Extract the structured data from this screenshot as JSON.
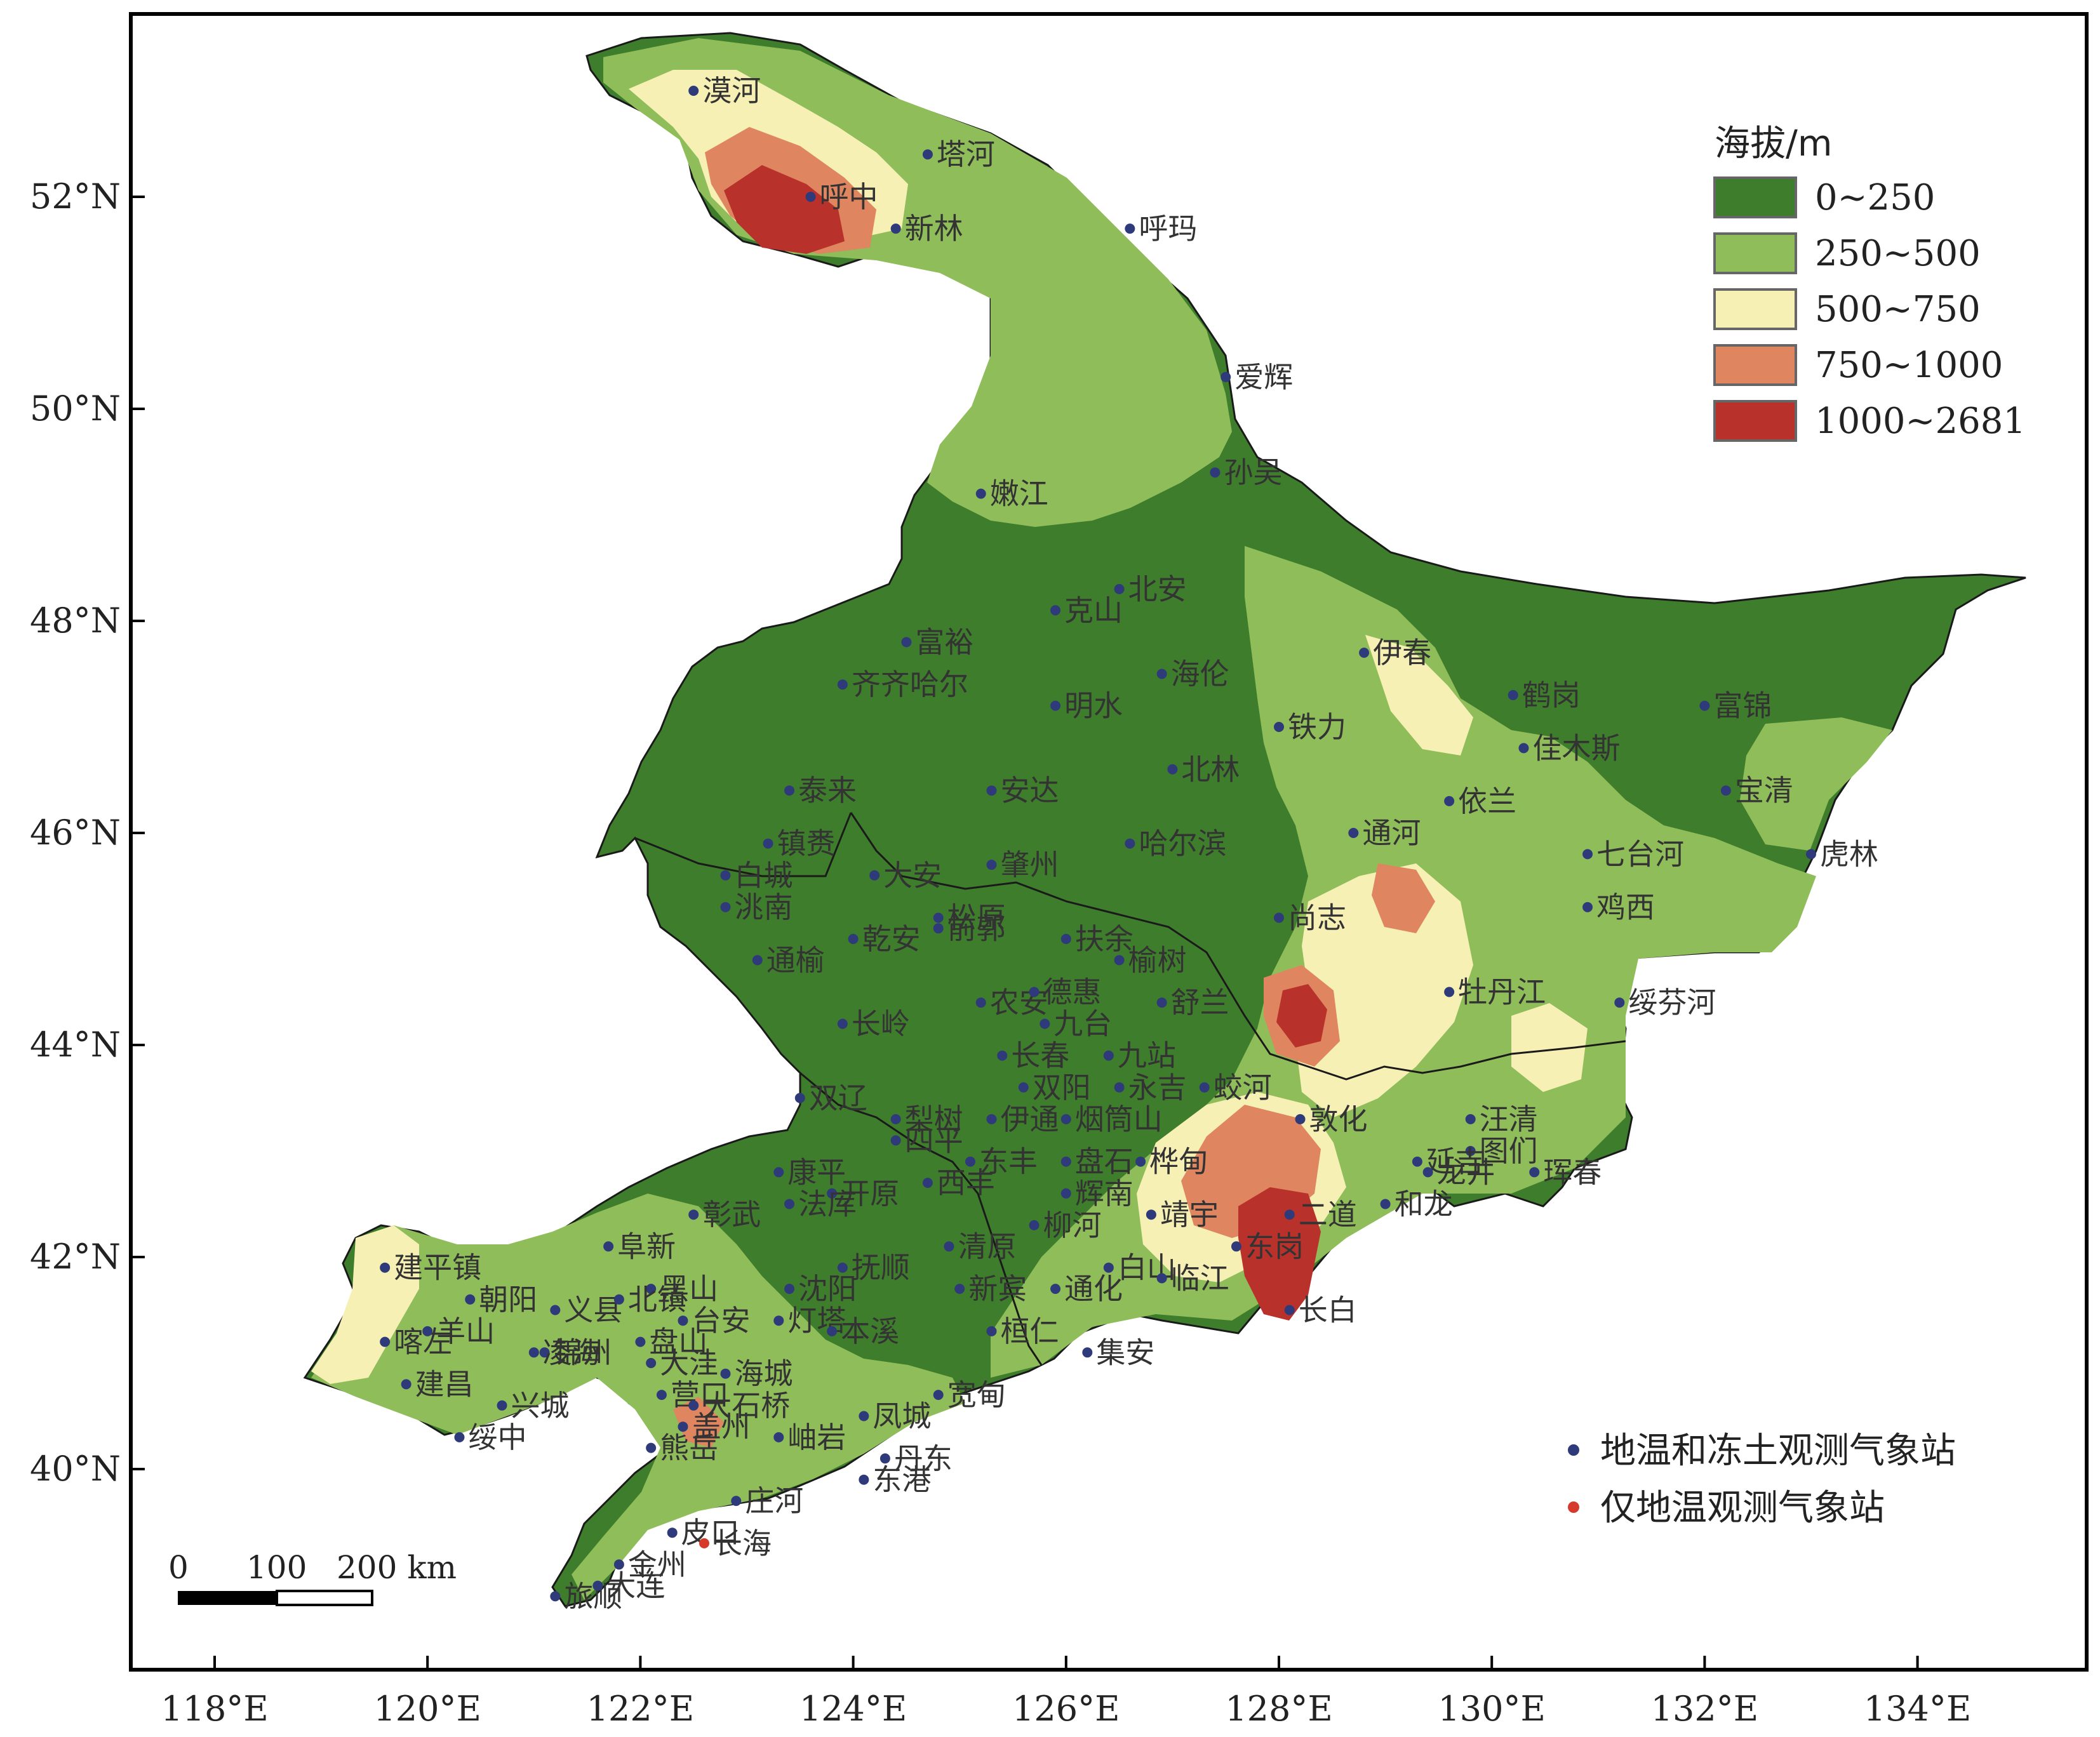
{
  "axes": {
    "x_ticks": [
      "118°E",
      "120°E",
      "122°E",
      "124°E",
      "126°E",
      "128°E",
      "130°E",
      "132°E",
      "134°E"
    ],
    "y_ticks": [
      "52°N",
      "50°N",
      "48°N",
      "46°N",
      "44°N",
      "42°N",
      "40°N"
    ]
  },
  "legend": {
    "title": "海拔/m",
    "classes": [
      {
        "label": "0~250",
        "color": "#3e7d2b"
      },
      {
        "label": "250~500",
        "color": "#8fbd5a"
      },
      {
        "label": "500~750",
        "color": "#f6f0b4"
      },
      {
        "label": "750~1000",
        "color": "#df8560"
      },
      {
        "label": "1000~2681",
        "color": "#b8312b"
      }
    ]
  },
  "station_legend": [
    {
      "label": "地温和冻土观测气象站",
      "color": "#2e3a7a"
    },
    {
      "label": "仅地温观测气象站",
      "color": "#d63a2a"
    }
  ],
  "scale_bar": {
    "ticks": [
      "0",
      "100",
      "200 km"
    ]
  },
  "stations": [
    {
      "name": "漠河",
      "lon": 122.5,
      "lat": 53.0,
      "type": "both"
    },
    {
      "name": "塔河",
      "lon": 124.7,
      "lat": 52.4,
      "type": "both"
    },
    {
      "name": "呼中",
      "lon": 123.6,
      "lat": 52.0,
      "type": "both"
    },
    {
      "name": "新林",
      "lon": 124.4,
      "lat": 51.7,
      "type": "both"
    },
    {
      "name": "呼玛",
      "lon": 126.6,
      "lat": 51.7,
      "type": "both"
    },
    {
      "name": "爱辉",
      "lon": 127.5,
      "lat": 50.3,
      "type": "both"
    },
    {
      "name": "孙吴",
      "lon": 127.4,
      "lat": 49.4,
      "type": "both"
    },
    {
      "name": "嫩江",
      "lon": 125.2,
      "lat": 49.2,
      "type": "both"
    },
    {
      "name": "北安",
      "lon": 126.5,
      "lat": 48.3,
      "type": "both"
    },
    {
      "name": "克山",
      "lon": 125.9,
      "lat": 48.1,
      "type": "both"
    },
    {
      "name": "富裕",
      "lon": 124.5,
      "lat": 47.8,
      "type": "both"
    },
    {
      "name": "伊春",
      "lon": 128.8,
      "lat": 47.7,
      "type": "both"
    },
    {
      "name": "海伦",
      "lon": 126.9,
      "lat": 47.5,
      "type": "both"
    },
    {
      "name": "齐齐哈尔",
      "lon": 123.9,
      "lat": 47.4,
      "type": "both"
    },
    {
      "name": "鹤岗",
      "lon": 130.2,
      "lat": 47.3,
      "type": "both"
    },
    {
      "name": "富锦",
      "lon": 132.0,
      "lat": 47.2,
      "type": "both"
    },
    {
      "name": "明水",
      "lon": 125.9,
      "lat": 47.2,
      "type": "both"
    },
    {
      "name": "铁力",
      "lon": 128.0,
      "lat": 47.0,
      "type": "both"
    },
    {
      "name": "佳木斯",
      "lon": 130.3,
      "lat": 46.8,
      "type": "both"
    },
    {
      "name": "北林",
      "lon": 127.0,
      "lat": 46.6,
      "type": "both"
    },
    {
      "name": "泰来",
      "lon": 123.4,
      "lat": 46.4,
      "type": "both"
    },
    {
      "name": "安达",
      "lon": 125.3,
      "lat": 46.4,
      "type": "both"
    },
    {
      "name": "宝清",
      "lon": 132.2,
      "lat": 46.4,
      "type": "both"
    },
    {
      "name": "依兰",
      "lon": 129.6,
      "lat": 46.3,
      "type": "both"
    },
    {
      "name": "通河",
      "lon": 128.7,
      "lat": 46.0,
      "type": "both"
    },
    {
      "name": "哈尔滨",
      "lon": 126.6,
      "lat": 45.9,
      "type": "both"
    },
    {
      "name": "镇赉",
      "lon": 123.2,
      "lat": 45.9,
      "type": "both"
    },
    {
      "name": "七台河",
      "lon": 130.9,
      "lat": 45.8,
      "type": "both"
    },
    {
      "name": "虎林",
      "lon": 133.0,
      "lat": 45.8,
      "type": "both"
    },
    {
      "name": "白城",
      "lon": 122.8,
      "lat": 45.6,
      "type": "both"
    },
    {
      "name": "大安",
      "lon": 124.2,
      "lat": 45.6,
      "type": "both"
    },
    {
      "name": "肇州",
      "lon": 125.3,
      "lat": 45.7,
      "type": "both"
    },
    {
      "name": "松原",
      "lon": 124.8,
      "lat": 45.2,
      "type": "both"
    },
    {
      "name": "洮南",
      "lon": 122.8,
      "lat": 45.3,
      "type": "both"
    },
    {
      "name": "鸡西",
      "lon": 130.9,
      "lat": 45.3,
      "type": "both"
    },
    {
      "name": "尚志",
      "lon": 128.0,
      "lat": 45.2,
      "type": "both"
    },
    {
      "name": "前郭",
      "lon": 124.8,
      "lat": 45.1,
      "type": "both"
    },
    {
      "name": "扶余",
      "lon": 126.0,
      "lat": 45.0,
      "type": "both"
    },
    {
      "name": "乾安",
      "lon": 124.0,
      "lat": 45.0,
      "type": "both"
    },
    {
      "name": "榆树",
      "lon": 126.5,
      "lat": 44.8,
      "type": "both"
    },
    {
      "name": "通榆",
      "lon": 123.1,
      "lat": 44.8,
      "type": "both"
    },
    {
      "name": "农安",
      "lon": 125.2,
      "lat": 44.4,
      "type": "both"
    },
    {
      "name": "德惠",
      "lon": 125.7,
      "lat": 44.5,
      "type": "both"
    },
    {
      "name": "牡丹江",
      "lon": 129.6,
      "lat": 44.5,
      "type": "both"
    },
    {
      "name": "舒兰",
      "lon": 126.9,
      "lat": 44.4,
      "type": "both"
    },
    {
      "name": "绥芬河",
      "lon": 131.2,
      "lat": 44.4,
      "type": "both"
    },
    {
      "name": "九台",
      "lon": 125.8,
      "lat": 44.2,
      "type": "both"
    },
    {
      "name": "长岭",
      "lon": 123.9,
      "lat": 44.2,
      "type": "both"
    },
    {
      "name": "长春",
      "lon": 125.4,
      "lat": 43.9,
      "type": "both"
    },
    {
      "name": "九站",
      "lon": 126.4,
      "lat": 43.9,
      "type": "both"
    },
    {
      "name": "双阳",
      "lon": 125.6,
      "lat": 43.6,
      "type": "both"
    },
    {
      "name": "永吉",
      "lon": 126.5,
      "lat": 43.6,
      "type": "both"
    },
    {
      "name": "蛟河",
      "lon": 127.3,
      "lat": 43.6,
      "type": "both"
    },
    {
      "name": "双辽",
      "lon": 123.5,
      "lat": 43.5,
      "type": "both"
    },
    {
      "name": "梨树",
      "lon": 124.4,
      "lat": 43.3,
      "type": "both"
    },
    {
      "name": "伊通",
      "lon": 125.3,
      "lat": 43.3,
      "type": "both"
    },
    {
      "name": "烟筒山",
      "lon": 126.0,
      "lat": 43.3,
      "type": "both"
    },
    {
      "name": "敦化",
      "lon": 128.2,
      "lat": 43.3,
      "type": "both"
    },
    {
      "name": "汪清",
      "lon": 129.8,
      "lat": 43.3,
      "type": "both"
    },
    {
      "name": "四平",
      "lon": 124.4,
      "lat": 43.1,
      "type": "both"
    },
    {
      "name": "图们",
      "lon": 129.8,
      "lat": 43.0,
      "type": "both"
    },
    {
      "name": "延吉",
      "lon": 129.3,
      "lat": 42.9,
      "type": "both"
    },
    {
      "name": "东丰",
      "lon": 125.1,
      "lat": 42.9,
      "type": "both"
    },
    {
      "name": "盘石",
      "lon": 126.0,
      "lat": 42.9,
      "type": "both"
    },
    {
      "name": "桦甸",
      "lon": 126.7,
      "lat": 42.9,
      "type": "both"
    },
    {
      "name": "龙井",
      "lon": 129.4,
      "lat": 42.8,
      "type": "both"
    },
    {
      "name": "珲春",
      "lon": 130.4,
      "lat": 42.8,
      "type": "both"
    },
    {
      "name": "康平",
      "lon": 123.3,
      "lat": 42.8,
      "type": "both"
    },
    {
      "name": "开原",
      "lon": 123.8,
      "lat": 42.6,
      "type": "both"
    },
    {
      "name": "西丰",
      "lon": 124.7,
      "lat": 42.7,
      "type": "both"
    },
    {
      "name": "辉南",
      "lon": 126.0,
      "lat": 42.6,
      "type": "both"
    },
    {
      "name": "彰武",
      "lon": 122.5,
      "lat": 42.4,
      "type": "both"
    },
    {
      "name": "柳河",
      "lon": 125.7,
      "lat": 42.3,
      "type": "both"
    },
    {
      "name": "二道",
      "lon": 128.1,
      "lat": 42.4,
      "type": "both"
    },
    {
      "name": "和龙",
      "lon": 129.0,
      "lat": 42.5,
      "type": "both"
    },
    {
      "name": "阜新",
      "lon": 121.7,
      "lat": 42.1,
      "type": "both"
    },
    {
      "name": "法库",
      "lon": 123.4,
      "lat": 42.5,
      "type": "both"
    },
    {
      "name": "清原",
      "lon": 124.9,
      "lat": 42.1,
      "type": "both"
    },
    {
      "name": "靖宇",
      "lon": 126.8,
      "lat": 42.4,
      "type": "both"
    },
    {
      "name": "建平镇",
      "lon": 119.6,
      "lat": 41.9,
      "type": "both"
    },
    {
      "name": "抚顺",
      "lon": 123.9,
      "lat": 41.9,
      "type": "both"
    },
    {
      "name": "白山",
      "lon": 126.4,
      "lat": 41.9,
      "type": "both"
    },
    {
      "name": "东岗",
      "lon": 127.6,
      "lat": 42.1,
      "type": "both"
    },
    {
      "name": "黑山",
      "lon": 122.1,
      "lat": 41.7,
      "type": "both"
    },
    {
      "name": "新宾",
      "lon": 125.0,
      "lat": 41.7,
      "type": "both"
    },
    {
      "name": "朝阳",
      "lon": 120.4,
      "lat": 41.6,
      "type": "both"
    },
    {
      "name": "义县",
      "lon": 121.2,
      "lat": 41.5,
      "type": "both"
    },
    {
      "name": "北镇",
      "lon": 121.8,
      "lat": 41.6,
      "type": "both"
    },
    {
      "name": "沈阳",
      "lon": 123.4,
      "lat": 41.7,
      "type": "both"
    },
    {
      "name": "通化",
      "lon": 125.9,
      "lat": 41.7,
      "type": "both"
    },
    {
      "name": "临江",
      "lon": 126.9,
      "lat": 41.8,
      "type": "both"
    },
    {
      "name": "长白",
      "lon": 128.1,
      "lat": 41.5,
      "type": "both"
    },
    {
      "name": "台安",
      "lon": 122.4,
      "lat": 41.4,
      "type": "both"
    },
    {
      "name": "桓仁",
      "lon": 125.3,
      "lat": 41.3,
      "type": "both"
    },
    {
      "name": "喀左",
      "lon": 119.6,
      "lat": 41.2,
      "type": "both"
    },
    {
      "name": "羊山",
      "lon": 120.0,
      "lat": 41.3,
      "type": "both"
    },
    {
      "name": "锦州",
      "lon": 121.1,
      "lat": 41.1,
      "type": "both"
    },
    {
      "name": "盘山",
      "lon": 122.0,
      "lat": 41.2,
      "type": "both"
    },
    {
      "name": "灯塔",
      "lon": 123.3,
      "lat": 41.4,
      "type": "both"
    },
    {
      "name": "大洼",
      "lon": 122.1,
      "lat": 41.0,
      "type": "both"
    },
    {
      "name": "本溪",
      "lon": 123.8,
      "lat": 41.3,
      "type": "both"
    },
    {
      "name": "集安",
      "lon": 126.2,
      "lat": 41.1,
      "type": "both"
    },
    {
      "name": "建昌",
      "lon": 119.8,
      "lat": 40.8,
      "type": "both"
    },
    {
      "name": "凌海",
      "lon": 121.0,
      "lat": 41.1,
      "type": "both"
    },
    {
      "name": "营口",
      "lon": 122.2,
      "lat": 40.7,
      "type": "both"
    },
    {
      "name": "海城",
      "lon": 122.8,
      "lat": 40.9,
      "type": "both"
    },
    {
      "name": "宽甸",
      "lon": 124.8,
      "lat": 40.7,
      "type": "both"
    },
    {
      "name": "兴城",
      "lon": 120.7,
      "lat": 40.6,
      "type": "both"
    },
    {
      "name": "大石桥",
      "lon": 122.5,
      "lat": 40.6,
      "type": "both"
    },
    {
      "name": "盖州",
      "lon": 122.4,
      "lat": 40.4,
      "type": "both"
    },
    {
      "name": "凤城",
      "lon": 124.1,
      "lat": 40.5,
      "type": "both"
    },
    {
      "name": "绥中",
      "lon": 120.3,
      "lat": 40.3,
      "type": "both"
    },
    {
      "name": "岫岩",
      "lon": 123.3,
      "lat": 40.3,
      "type": "both"
    },
    {
      "name": "熊岳",
      "lon": 122.1,
      "lat": 40.2,
      "type": "both"
    },
    {
      "name": "丹东",
      "lon": 124.3,
      "lat": 40.1,
      "type": "both"
    },
    {
      "name": "东港",
      "lon": 124.1,
      "lat": 39.9,
      "type": "both"
    },
    {
      "name": "庄河",
      "lon": 122.9,
      "lat": 39.7,
      "type": "both"
    },
    {
      "name": "皮口",
      "lon": 122.3,
      "lat": 39.4,
      "type": "both"
    },
    {
      "name": "金州",
      "lon": 121.8,
      "lat": 39.1,
      "type": "both"
    },
    {
      "name": "长海",
      "lon": 122.6,
      "lat": 39.3,
      "type": "temp"
    },
    {
      "name": "旅顺",
      "lon": 121.2,
      "lat": 38.8,
      "type": "both"
    },
    {
      "name": "大连",
      "lon": 121.6,
      "lat": 38.9,
      "type": "both"
    }
  ]
}
